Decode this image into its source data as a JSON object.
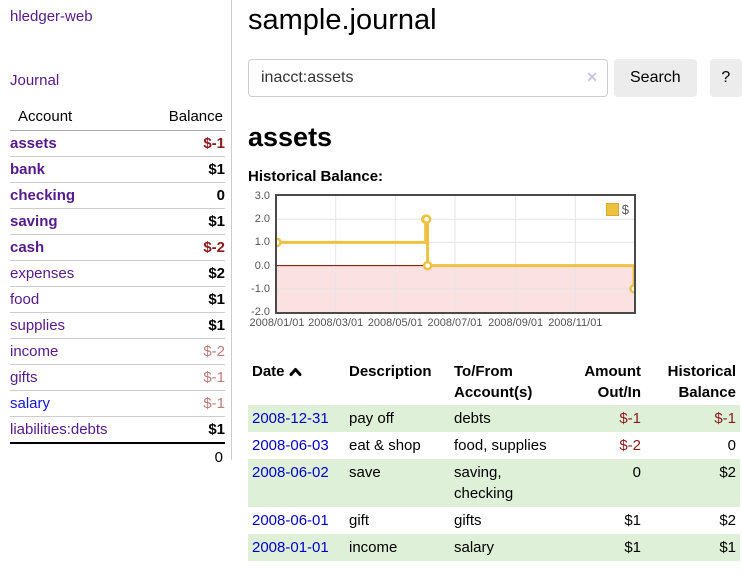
{
  "app": {
    "brand": "hledger-web",
    "nav": {
      "journal": "Journal"
    }
  },
  "colors": {
    "link_purple": "#551a8b",
    "link_blue": "#0000cc",
    "negative_strong": "#8b1a1a",
    "negative_soft": "#bd7c7c",
    "row_stripe_green": "#dff0d8",
    "series_yellow": "#edc240"
  },
  "sidebar": {
    "headers": {
      "account": "Account",
      "balance": "Balance"
    },
    "accounts": [
      {
        "name": "assets",
        "depth": 1,
        "bold": true,
        "balance": "$-1",
        "balance_style": "neg-strong"
      },
      {
        "name": "bank",
        "depth": 2,
        "bold": true,
        "balance": "$1",
        "balance_style": "pos"
      },
      {
        "name": "checking",
        "depth": 3,
        "bold": true,
        "balance": "0",
        "balance_style": "pos"
      },
      {
        "name": "saving",
        "depth": 3,
        "bold": true,
        "balance": "$1",
        "balance_style": "pos"
      },
      {
        "name": "cash",
        "depth": 2,
        "bold": true,
        "balance": "$-2",
        "balance_style": "neg-strong"
      },
      {
        "name": "expenses",
        "depth": 1,
        "bold": false,
        "balance": "$2",
        "balance_style": "pos"
      },
      {
        "name": "food",
        "depth": 2,
        "bold": false,
        "balance": "$1",
        "balance_style": "pos"
      },
      {
        "name": "supplies",
        "depth": 2,
        "bold": false,
        "balance": "$1",
        "balance_style": "pos"
      },
      {
        "name": "income",
        "depth": 1,
        "bold": false,
        "balance": "$-2",
        "balance_style": "neg-soft"
      },
      {
        "name": "gifts",
        "depth": 2,
        "bold": false,
        "balance": "$-1",
        "balance_style": "neg-soft"
      },
      {
        "name": "salary",
        "depth": 2,
        "bold": false,
        "link_color": "blue",
        "balance": "$-1",
        "balance_style": "neg-soft"
      },
      {
        "name": "liabilities:debts",
        "depth": 1,
        "bold": false,
        "balance": "$1",
        "balance_style": "pos"
      }
    ],
    "total": "0"
  },
  "main": {
    "title": "sample.journal",
    "account_heading": "assets",
    "chart_title": "Historical Balance:"
  },
  "search": {
    "value": "inacct:assets",
    "clear_icon": "✕",
    "search_button": "Search",
    "help_button": "?"
  },
  "chart_data": {
    "type": "line",
    "title": "Historical Balance:",
    "series": [
      {
        "name": "$",
        "color": "#edc240",
        "step": true,
        "points": [
          [
            "2008-01-01",
            1
          ],
          [
            "2008-06-01",
            2
          ],
          [
            "2008-06-02",
            2
          ],
          [
            "2008-06-03",
            0
          ],
          [
            "2008-12-31",
            -1
          ]
        ]
      }
    ],
    "x_range": [
      "2008-01-01",
      "2008-12-31"
    ],
    "ylim": [
      -2,
      3
    ],
    "y_ticks": [
      "3.0",
      "2.0",
      "1.0",
      "0.0",
      "-1.0",
      "-2.0"
    ],
    "x_ticks": [
      "2008/01/01",
      "2008/03/01",
      "2008/05/01",
      "2008/07/01",
      "2008/09/01",
      "2008/11/01"
    ],
    "grid": true,
    "legend_position": "top-right",
    "grid_color": "#e6e6e6",
    "negative_region_color": "#fbe1e1",
    "zero_line_color": "#8b0000"
  },
  "register": {
    "headers": {
      "date": "Date",
      "description": "Description",
      "tofrom_line1": "To/From",
      "tofrom_line2": "Account(s)",
      "amount_line1": "Amount",
      "amount_line2": "Out/In",
      "balance_line1": "Historical",
      "balance_line2": "Balance"
    },
    "sort": {
      "column": "date",
      "direction": "ascending"
    },
    "rows": [
      {
        "date": "2008-12-31",
        "description": "pay off",
        "accounts": "debts",
        "amount": "$-1",
        "balance": "$-1"
      },
      {
        "date": "2008-06-03",
        "description": "eat & shop",
        "accounts": "food, supplies",
        "amount": "$-2",
        "balance": "0"
      },
      {
        "date": "2008-06-02",
        "description": "save",
        "accounts": "saving, checking",
        "amount": "0",
        "balance": "$2"
      },
      {
        "date": "2008-06-01",
        "description": "gift",
        "accounts": "gifts",
        "amount": "$1",
        "balance": "$2"
      },
      {
        "date": "2008-01-01",
        "description": "income",
        "accounts": "salary",
        "amount": "$1",
        "balance": "$1"
      }
    ]
  }
}
